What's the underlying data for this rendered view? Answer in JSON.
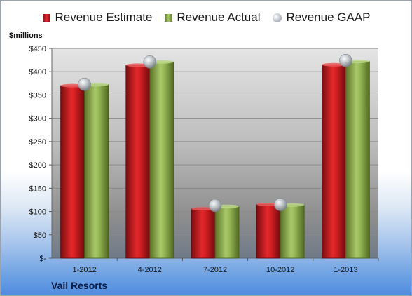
{
  "chart_data": {
    "type": "bar",
    "categories": [
      "1-2012",
      "4-2012",
      "7-2012",
      "10-2012",
      "1-2013"
    ],
    "series": [
      {
        "name": "Revenue Estimate",
        "values": [
          370,
          414,
          106,
          115,
          415
        ],
        "color": "#c8191d"
      },
      {
        "name": "Revenue Actual",
        "values": [
          372,
          421,
          111,
          114,
          422
        ],
        "color": "#8bab45"
      },
      {
        "name": "Revenue GAAP",
        "values": [
          373,
          421,
          113,
          115,
          424
        ],
        "color": "#b9bec6",
        "marker": "circle"
      }
    ],
    "ylabel": "$millions",
    "ylim": [
      0,
      450
    ],
    "yticks": [
      0,
      50,
      100,
      150,
      200,
      250,
      300,
      350,
      400,
      450
    ],
    "ytick_labels": [
      "$-",
      "$50",
      "$100",
      "$150",
      "$200",
      "$250",
      "$300",
      "$350",
      "$400",
      "$450"
    ],
    "legend_position": "top",
    "grid": true,
    "company": "Vail Resorts"
  }
}
